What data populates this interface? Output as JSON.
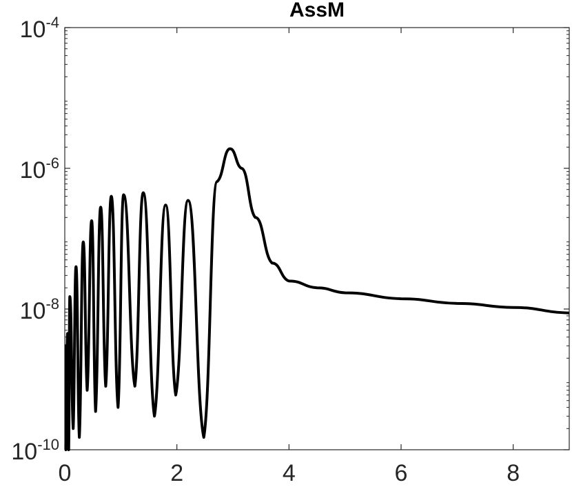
{
  "chart_data": {
    "type": "line",
    "title": "AssM",
    "xlabel": "",
    "ylabel": "",
    "xlim": [
      0,
      9
    ],
    "ylim": [
      1e-10,
      0.0001
    ],
    "yscale": "log",
    "grid": false,
    "legend": "none",
    "line_color": "#000000",
    "x_ticks": [
      "0",
      "2",
      "4",
      "6",
      "8"
    ],
    "y_ticks": [
      {
        "base": "10",
        "exp": "-10"
      },
      {
        "base": "10",
        "exp": "-8"
      },
      {
        "base": "10",
        "exp": "-6"
      },
      {
        "base": "10",
        "exp": "-4"
      }
    ],
    "series": [
      {
        "points": [
          [
            0.0,
            1e-10
          ],
          [
            0.01,
            3e-09
          ],
          [
            0.02,
            1e-10
          ],
          [
            0.05,
            4.5e-09
          ],
          [
            0.07,
            1e-10
          ],
          [
            0.09,
            1.5e-08
          ],
          [
            0.15,
            2e-10
          ],
          [
            0.2,
            4e-08
          ],
          [
            0.26,
            1.5e-10
          ],
          [
            0.33,
            9e-08
          ],
          [
            0.4,
            7e-10
          ],
          [
            0.48,
            1.8e-07
          ],
          [
            0.55,
            3.5e-10
          ],
          [
            0.64,
            2.8e-07
          ],
          [
            0.73,
            8e-10
          ],
          [
            0.83,
            4e-07
          ],
          [
            0.95,
            4e-10
          ],
          [
            1.05,
            4.2e-07
          ],
          [
            1.25,
            8e-10
          ],
          [
            1.4,
            4.5e-07
          ],
          [
            1.6,
            3e-10
          ],
          [
            1.8,
            3e-07
          ],
          [
            1.98,
            6e-10
          ],
          [
            2.2,
            3.5e-07
          ],
          [
            2.48,
            1.5e-10
          ],
          [
            2.72,
            6.5e-07
          ],
          [
            2.95,
            1.9e-06
          ],
          [
            3.15,
            1e-06
          ],
          [
            3.4,
            2e-07
          ],
          [
            3.7,
            4.5e-08
          ],
          [
            4.0,
            2.5e-08
          ],
          [
            4.5,
            2e-08
          ],
          [
            5.0,
            1.7e-08
          ],
          [
            6.0,
            1.4e-08
          ],
          [
            7.0,
            1.2e-08
          ],
          [
            8.0,
            1.05e-08
          ],
          [
            9.0,
            8.8e-09
          ]
        ]
      }
    ]
  }
}
